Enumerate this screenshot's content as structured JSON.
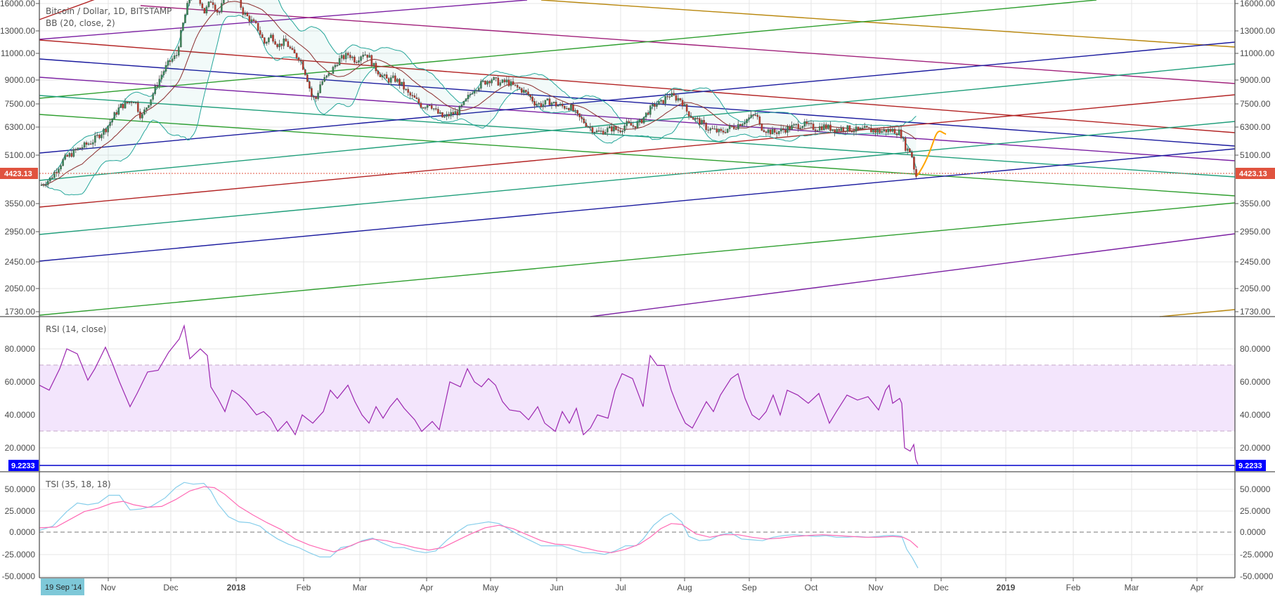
{
  "chart_data": [
    {
      "type": "candlestick",
      "title": "Bitcoin / Dollar, 1D, BITSTAMP",
      "subtitle": "BB (20, close, 2)",
      "symbol": "Bitcoin / Dollar",
      "interval": "1D",
      "exchange": "BITSTAMP",
      "indicator": "BB (20, close, 2)",
      "yscale": "log",
      "yticks": [
        16000,
        13000,
        11000,
        9000,
        7500,
        6300,
        5100,
        3550,
        2950,
        2450,
        2050,
        1730
      ],
      "ylim": [
        1550,
        17500
      ],
      "last_price": 4423.13,
      "last_price_label": "4423.13",
      "xticks": [
        "Nov",
        "Dec",
        "2018",
        "Feb",
        "Mar",
        "Apr",
        "May",
        "Jun",
        "Jul",
        "Aug",
        "Sep",
        "Oct",
        "Nov",
        "Dec",
        "2019",
        "Feb",
        "Mar",
        "Apr"
      ],
      "approx_closes_by_month": [
        {
          "month": "Oct 2017",
          "close": 6400
        },
        {
          "month": "Nov 2017",
          "close": 9900
        },
        {
          "month": "Dec 2017",
          "close": 14000
        },
        {
          "month": "Jan 2018",
          "close": 10200
        },
        {
          "month": "Feb 2018",
          "close": 10300
        },
        {
          "month": "Mar 2018",
          "close": 6900
        },
        {
          "month": "Apr 2018",
          "close": 9200
        },
        {
          "month": "May 2018",
          "close": 7500
        },
        {
          "month": "Jun 2018",
          "close": 6400
        },
        {
          "month": "Jul 2018",
          "close": 7700
        },
        {
          "month": "Aug 2018",
          "close": 7000
        },
        {
          "month": "Sep 2018",
          "close": 6600
        },
        {
          "month": "Oct 2018",
          "close": 6300
        },
        {
          "month": "Nov 2018",
          "close": 4423.13
        }
      ],
      "annotations": [
        "multiple colored trendlines",
        "orange projected path from ~4423 up to ~5900"
      ]
    },
    {
      "type": "line",
      "title": "RSI (14, close)",
      "yticks": [
        80,
        60,
        40,
        20
      ],
      "ylim": [
        0,
        100
      ],
      "band": [
        30,
        70
      ],
      "last_value": 9.2233,
      "last_value_label": "9.2233",
      "approx_values_by_month": [
        {
          "month": "Oct 2017",
          "close": 60
        },
        {
          "month": "Nov 2017",
          "close": 75
        },
        {
          "month": "Dec 2017",
          "close": 80
        },
        {
          "month": "Jan 2018",
          "close": 45
        },
        {
          "month": "Feb 2018",
          "close": 50
        },
        {
          "month": "Mar 2018",
          "close": 35
        },
        {
          "month": "Apr 2018",
          "close": 60
        },
        {
          "month": "May 2018",
          "close": 40
        },
        {
          "month": "Jun 2018",
          "close": 40
        },
        {
          "month": "Jul 2018",
          "close": 70
        },
        {
          "month": "Aug 2018",
          "close": 40
        },
        {
          "month": "Sep 2018",
          "close": 50
        },
        {
          "month": "Oct 2018",
          "close": 48
        },
        {
          "month": "Nov 2018",
          "close": 9.2233
        }
      ]
    },
    {
      "type": "line",
      "title": "TSI (35, 18, 18)",
      "yticks": [
        50,
        25,
        0,
        -25,
        -50
      ],
      "ylim": [
        -50,
        65
      ],
      "series": [
        {
          "name": "TSI",
          "color": "#87ceeb"
        },
        {
          "name": "Signal",
          "color": "#ff69b4"
        }
      ]
    }
  ],
  "header": {
    "title": "Bitcoin / Dollar, 1D, BITSTAMP",
    "indicator": "BB (20, close, 2)"
  },
  "panes": {
    "rsi_title": "RSI (14, close)",
    "tsi_title": "TSI (35, 18, 18)"
  },
  "axis": {
    "price_ticks": [
      "16000.00",
      "13000.00",
      "11000.00",
      "9000.00",
      "7500.00",
      "6300.00",
      "5100.00",
      "3550.00",
      "2950.00",
      "2450.00",
      "2050.00",
      "1730.00"
    ],
    "price_tag": "4423.13",
    "rsi_ticks": [
      "80.0000",
      "60.0000",
      "40.0000",
      "20.0000"
    ],
    "rsi_tag": "9.2233",
    "tsi_ticks": [
      "50.0000",
      "25.0000",
      "0.0000",
      "-25.0000",
      "-50.0000"
    ],
    "time_ticks": [
      "Nov",
      "Dec",
      "2018",
      "Feb",
      "Mar",
      "Apr",
      "May",
      "Jun",
      "Jul",
      "Aug",
      "Sep",
      "Oct",
      "Nov",
      "Dec",
      "2019",
      "Feb",
      "Mar",
      "Apr"
    ],
    "cursor_date": "19 Sep '14"
  },
  "colors": {
    "up": "#3c8a5a",
    "down": "#c0392b",
    "price_tag": "#e0533f",
    "rsi_tag": "#0000ff",
    "rsi_line": "#9c27b0",
    "rsi_band": "#f3e5fc",
    "bb_band": "#26a69a",
    "bb_basis": "#8b2d2d",
    "tsi": "#87ceeb",
    "tsi_signal": "#ff69b4",
    "projection": "#ffa500",
    "cursor_bg": "#7ec8d8"
  }
}
